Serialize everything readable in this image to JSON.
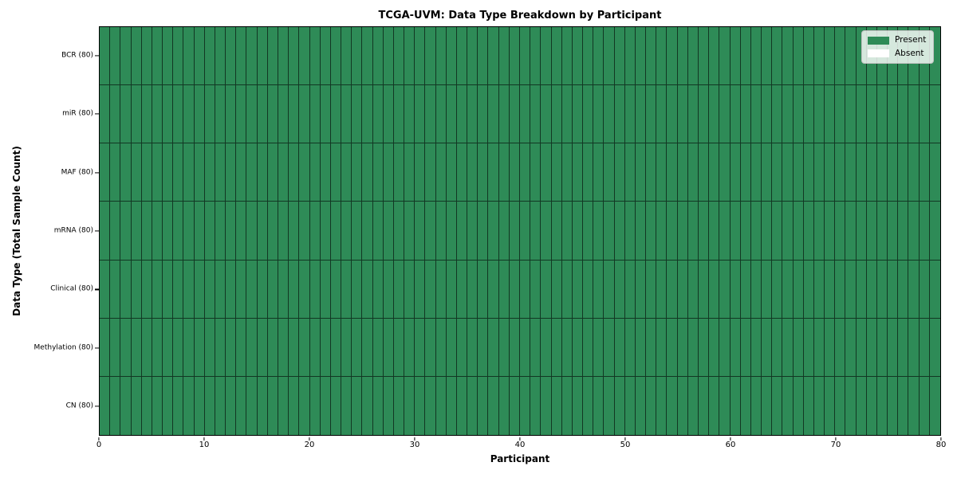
{
  "chart_data": {
    "type": "heatmap",
    "title": "TCGA-UVM: Data Type Breakdown by Participant",
    "xlabel": "Participant",
    "ylabel": "Data Type (Total Sample Count)",
    "xlim": [
      0,
      80
    ],
    "x_ticks": [
      0,
      10,
      20,
      30,
      40,
      50,
      60,
      70,
      80
    ],
    "participants": 80,
    "grid_on": false,
    "legend_position": "upper right",
    "rows": [
      {
        "data_type": "BCR",
        "label": "BCR (80)",
        "total": 80,
        "present_count": 80,
        "absent_count": 0
      },
      {
        "data_type": "miR",
        "label": "miR (80)",
        "total": 80,
        "present_count": 80,
        "absent_count": 0
      },
      {
        "data_type": "MAF",
        "label": "MAF (80)",
        "total": 80,
        "present_count": 80,
        "absent_count": 0
      },
      {
        "data_type": "mRNA",
        "label": "mRNA (80)",
        "total": 80,
        "present_count": 80,
        "absent_count": 0
      },
      {
        "data_type": "Clinical",
        "label": "Clinical (80)",
        "total": 80,
        "present_count": 80,
        "absent_count": 0
      },
      {
        "data_type": "Methylation",
        "label": "Methylation (80)",
        "total": 80,
        "present_count": 80,
        "absent_count": 0
      },
      {
        "data_type": "CN",
        "label": "CN (80)",
        "total": 80,
        "present_count": 80,
        "absent_count": 0
      }
    ],
    "legend": [
      {
        "label": "Present",
        "color": "#2e8b57"
      },
      {
        "label": "Absent",
        "color": "#ffffff"
      }
    ],
    "colors": {
      "present": "#2e8b57",
      "absent": "#ffffff",
      "cell_edge": "rgba(0,0,0,0.60)",
      "axis": "#000000"
    }
  }
}
